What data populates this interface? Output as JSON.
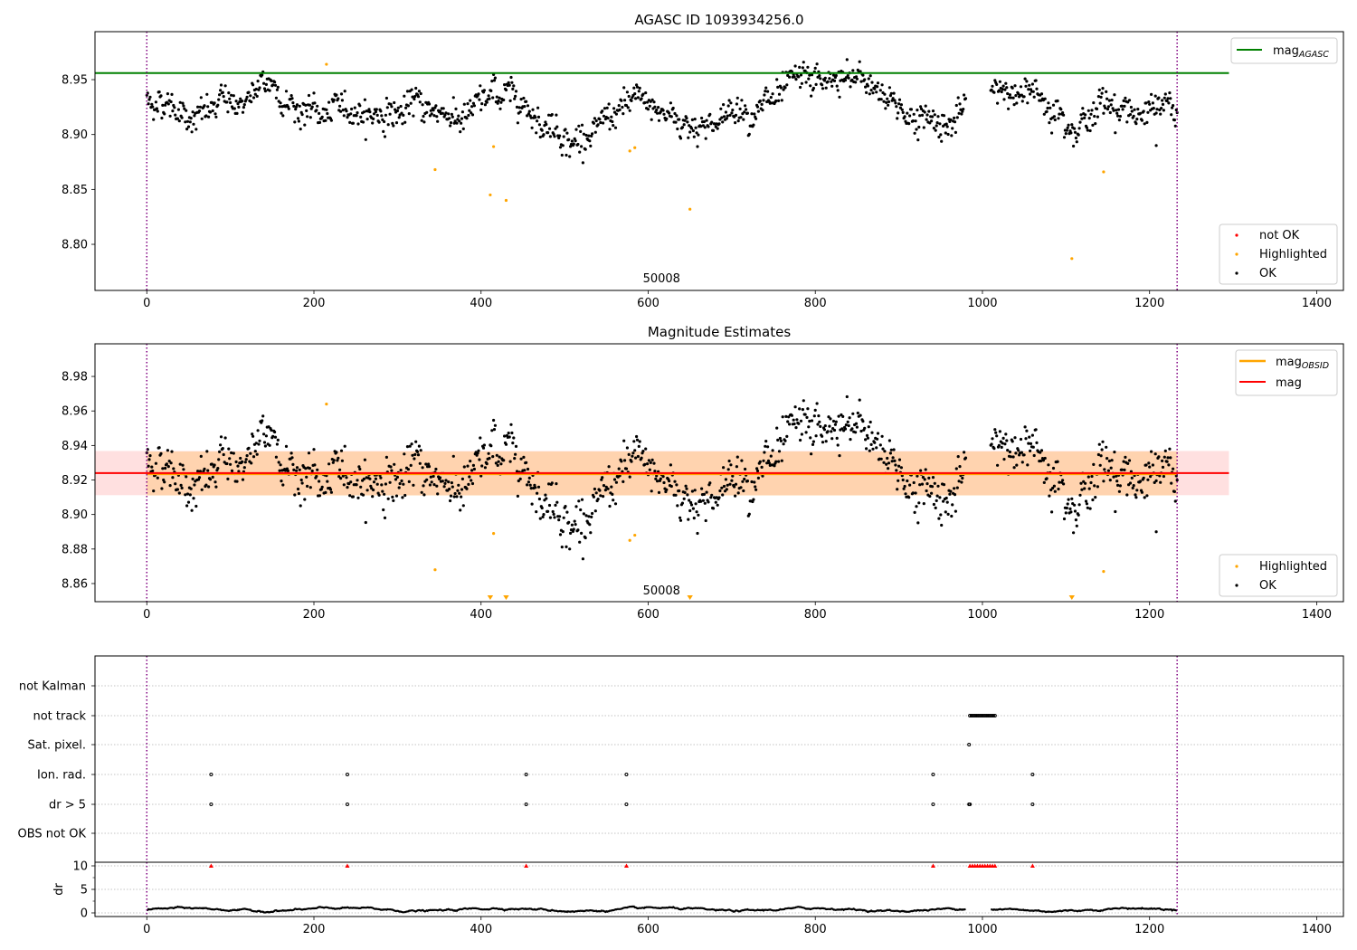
{
  "chart_data": [
    {
      "type": "scatter",
      "title": "AGASC ID 1093934256.0",
      "xlim": [
        -62,
        1432
      ],
      "ylim": [
        8.758,
        8.9937
      ],
      "xticks": [
        "0",
        "200",
        "400",
        "600",
        "800",
        "1000",
        "1200",
        "1400"
      ],
      "xtick_values": [
        0,
        200,
        400,
        600,
        800,
        1000,
        1200,
        1400
      ],
      "yticks": [
        "8.80",
        "8.85",
        "8.90",
        "8.95"
      ],
      "ytick_values": [
        8.8,
        8.85,
        8.9,
        8.95
      ],
      "vlines": [
        0,
        1233
      ],
      "annotation": "50008",
      "annotation_x": 616,
      "mag_agasc": 8.956,
      "mag_agasc_xrange": [
        -62,
        1295
      ],
      "legend_top": [
        {
          "label": "mag",
          "sub": "AGASC",
          "color": "#008000"
        }
      ],
      "legend_bottom": [
        {
          "label": "not OK",
          "color": "#ff0000"
        },
        {
          "label": "Highlighted",
          "color": "#ffa500"
        },
        {
          "label": "OK",
          "color": "#000000"
        }
      ],
      "series": {
        "ok_segments": [
          [
            0,
            980,
            8.924
          ],
          [
            1010,
            1233,
            8.928
          ]
        ],
        "highlighted": [
          [
            215,
            8.964
          ],
          [
            345,
            8.868
          ],
          [
            411,
            8.845
          ],
          [
            415,
            8.889
          ],
          [
            430,
            8.84
          ],
          [
            578,
            8.885
          ],
          [
            584,
            8.888
          ],
          [
            650,
            8.832
          ],
          [
            1107,
            8.787
          ],
          [
            1145,
            8.866
          ]
        ],
        "ok_outliers": [
          [
            1208,
            8.89
          ]
        ]
      }
    },
    {
      "type": "scatter",
      "title": "Magnitude Estimates",
      "xlim": [
        -62,
        1432
      ],
      "ylim": [
        8.8495,
        8.9989
      ],
      "xticks": [
        "0",
        "200",
        "400",
        "600",
        "800",
        "1000",
        "1200",
        "1400"
      ],
      "xtick_values": [
        0,
        200,
        400,
        600,
        800,
        1000,
        1200,
        1400
      ],
      "yticks": [
        "8.86",
        "8.88",
        "8.90",
        "8.92",
        "8.94",
        "8.96",
        "8.98"
      ],
      "ytick_values": [
        8.86,
        8.88,
        8.9,
        8.92,
        8.94,
        8.96,
        8.98
      ],
      "vlines": [
        0,
        1233
      ],
      "annotation": "50008",
      "annotation_x": 616,
      "mag": 8.924,
      "mag_band": [
        8.9112,
        8.9368
      ],
      "mag_obsid": 8.9235,
      "mag_obsid_band": [
        8.911,
        8.9365
      ],
      "obsid_xrange": [
        0,
        1233
      ],
      "mag_xrange": [
        -62,
        1295
      ],
      "legend_top": [
        {
          "label": "mag",
          "sub": "OBSID",
          "color": "#ffa500"
        },
        {
          "label": "mag",
          "sub": "",
          "color": "#ff0000"
        }
      ],
      "legend_bottom": [
        {
          "label": "Highlighted",
          "color": "#ffa500"
        },
        {
          "label": "OK",
          "color": "#000000"
        }
      ],
      "series": {
        "highlighted": [
          [
            215,
            8.964
          ],
          [
            345,
            8.868
          ],
          [
            415,
            8.889
          ],
          [
            578,
            8.885
          ],
          [
            584,
            8.888
          ],
          [
            1145,
            8.867
          ]
        ],
        "below_range_markers": [
          411,
          430,
          650,
          1107
        ]
      }
    },
    {
      "type": "scatter",
      "title": "",
      "xlim": [
        -62,
        1432
      ],
      "xticks": [
        "0",
        "200",
        "400",
        "600",
        "800",
        "1000",
        "1200",
        "1400"
      ],
      "xtick_values": [
        0,
        200,
        400,
        600,
        800,
        1000,
        1200,
        1400
      ],
      "flag_rows": [
        "not Kalman",
        "not track",
        "Sat. pixel.",
        "Ion. rad.",
        "dr > 5",
        "OBS not OK"
      ],
      "flags": {
        "not Kalman": [],
        "not track": [
          985,
          987,
          989,
          991,
          993,
          995,
          997,
          999,
          1001,
          1003,
          1005,
          1007,
          1009,
          1011,
          1013,
          1015
        ],
        "Sat. pixel.": [
          984
        ],
        "Ion. rad.": [
          77,
          240,
          454,
          574,
          941,
          1060
        ],
        "dr > 5": [
          77,
          240,
          454,
          574,
          941,
          984,
          985,
          1060
        ],
        "OBS not OK": []
      },
      "dr_ylabel": "dr",
      "dr_ylim": [
        -0.77,
        10.77
      ],
      "dr_yticks": [
        "0",
        "5",
        "10"
      ],
      "dr_ytick_values": [
        0,
        5,
        10
      ],
      "dr_clipped": [
        77,
        240,
        454,
        574,
        941,
        985,
        988,
        991,
        994,
        997,
        1000,
        1003,
        1006,
        1009,
        1012,
        1015,
        1060
      ],
      "dr_baseline": 0.7,
      "vlines": [
        0,
        1233
      ]
    }
  ]
}
